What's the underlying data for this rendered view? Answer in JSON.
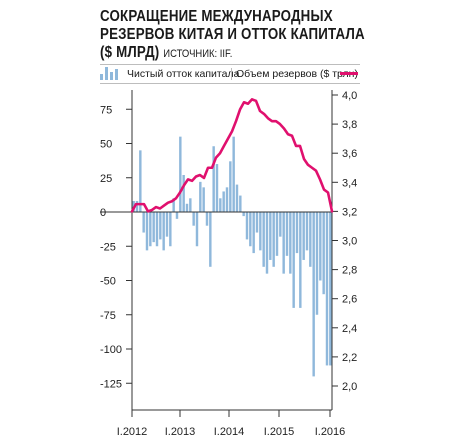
{
  "title": {
    "line1": "СОКРАЩЕНИЕ МЕЖДУНАРОДНЫХ",
    "line2": "РЕЗЕРВОВ КИТАЯ И ОТТОК КАПИТАЛА",
    "line3": "($ МЛРД)",
    "source": "ИСТОЧНИК: IIF."
  },
  "colors": {
    "bars": "#8fb8db",
    "line": "#e0106e",
    "text": "#1a1a1a",
    "axis": "#333333"
  },
  "chart_data": {
    "type": "bar",
    "legend": {
      "placement": "top",
      "bars_label": "Чистый отток капитала",
      "line_label": "Объем резервов ($ трлн)"
    },
    "grid": false,
    "x_tick_labels": [
      "I.2012",
      "I.2013",
      "I.2014",
      "I.2015",
      "I.2016"
    ],
    "y_left": {
      "ticks": [
        "75",
        "50",
        "25",
        "0",
        "-25",
        "-50",
        "-75",
        "-100",
        "-125"
      ],
      "range": [
        -135,
        90
      ]
    },
    "y_right": {
      "ticks": [
        "4,0",
        "3,8",
        "3,6",
        "3,4",
        "3,2",
        "3,0",
        "2,8",
        "2,6",
        "2,4",
        "2,2",
        "2,0"
      ],
      "range": [
        1.95,
        4.05
      ]
    },
    "series": [
      {
        "name": "Чистый отток капитала",
        "type": "bar",
        "values": [
          8,
          8,
          45,
          -15,
          -28,
          -25,
          -22,
          -25,
          -20,
          -28,
          -18,
          -25,
          10,
          -5,
          55,
          27,
          6,
          10,
          -10,
          -25,
          22,
          18,
          -10,
          -40,
          48,
          35,
          10,
          15,
          18,
          37,
          55,
          20,
          12,
          -3,
          -20,
          -25,
          -30,
          -15,
          -28,
          -40,
          -45,
          -35,
          -40,
          -32,
          -18,
          -45,
          -32,
          -45,
          -70,
          -30,
          -70,
          -35,
          -28,
          -40,
          -120,
          -75,
          -50,
          -60,
          -112,
          -112
        ]
      },
      {
        "name": "Объем резервов ($ трлн)",
        "type": "line",
        "values": [
          3.2,
          3.25,
          3.25,
          3.25,
          3.2,
          3.21,
          3.23,
          3.22,
          3.24,
          3.26,
          3.27,
          3.29,
          3.33,
          3.38,
          3.42,
          3.41,
          3.44,
          3.45,
          3.43,
          3.5,
          3.5,
          3.57,
          3.6,
          3.65,
          3.7,
          3.75,
          3.82,
          3.9,
          3.95,
          3.94,
          3.97,
          3.96,
          3.89,
          3.87,
          3.84,
          3.82,
          3.82,
          3.8,
          3.77,
          3.73,
          3.72,
          3.65,
          3.65,
          3.56,
          3.52,
          3.5,
          3.48,
          3.42,
          3.35,
          3.33,
          3.2
        ]
      }
    ]
  }
}
